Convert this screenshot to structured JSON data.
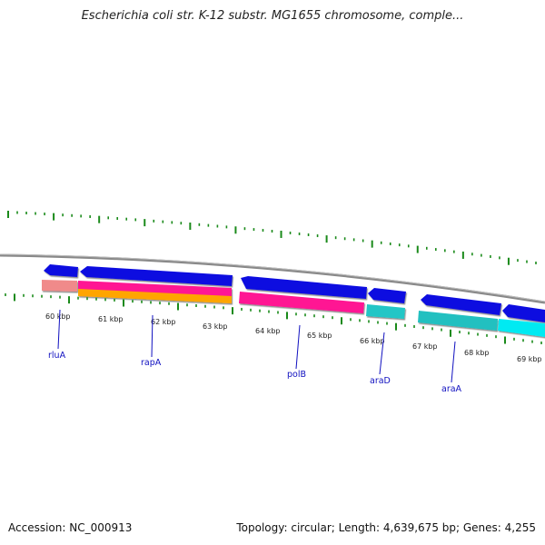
{
  "title": "Escherichia coli str. K-12 substr. MG1655 chromosome, comple...",
  "footer": {
    "accession": "Accession: NC_000913",
    "summary": "Topology: circular; Length: 4,639,675 bp; Genes: 4,255"
  },
  "colors": {
    "backbone": "#8a8a8a",
    "tick": "#1a8a1a",
    "gene_arrow": "#1010e0",
    "label": "#1010c0",
    "pink": "#ff1493",
    "orange": "#ffa500",
    "salmon": "#f08080",
    "teal": "#20c0c0",
    "cyan": "#00e8f0"
  },
  "kbp_labels": [
    "60 kbp",
    "61 kbp",
    "62 kbp",
    "63 kbp",
    "64 kbp",
    "65 kbp",
    "66 kbp",
    "67 kbp",
    "68 kbp",
    "69 kbp"
  ],
  "gene_labels": [
    "rluA",
    "rapA",
    "polB",
    "araD",
    "araA"
  ]
}
